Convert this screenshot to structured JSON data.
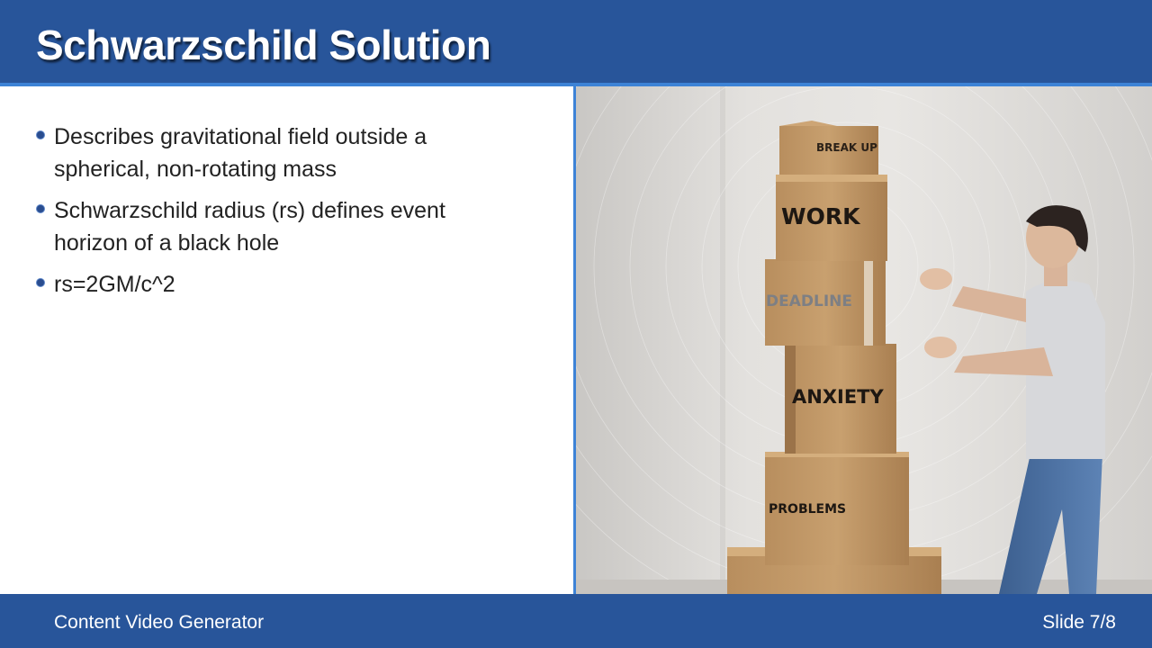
{
  "slide": {
    "title": "Schwarzschild Solution",
    "bullets": [
      "Describes gravitational field outside a spherical, non-rotating mass",
      "Schwarzschild radius (rs) defines event horizon of a black hole",
      "rs=2GM/c^2"
    ]
  },
  "image": {
    "box_labels": [
      "BREAK UP",
      "WORK",
      "DEADLINE",
      "ANXIETY",
      "PROBLEMS"
    ]
  },
  "footer": {
    "brand": "Content Video Generator",
    "slide_counter": "Slide 7/8"
  },
  "colors": {
    "header_bg": "#28559a",
    "accent_rule": "#3d83d6",
    "bullet_dot": "#2a4d8f",
    "text": "#222222"
  }
}
